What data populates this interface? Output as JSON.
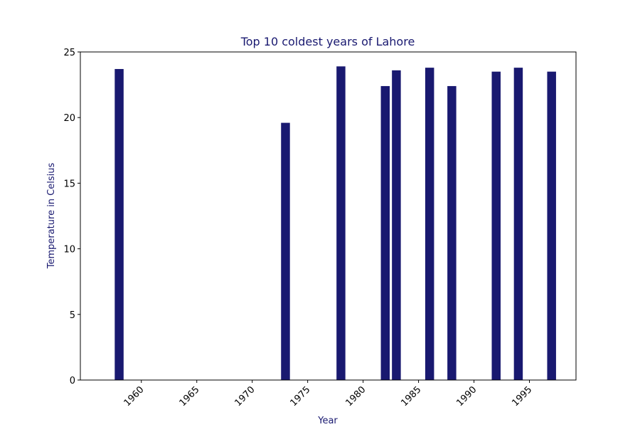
{
  "chart_data": {
    "type": "bar",
    "title": "Top 10 coldest years of Lahore",
    "xlabel": "Year",
    "ylabel": "Temperature in Celsius",
    "x": [
      1958,
      1973,
      1978,
      1982,
      1983,
      1986,
      1988,
      1992,
      1994,
      1997
    ],
    "values": [
      23.7,
      19.6,
      23.9,
      22.4,
      23.6,
      23.8,
      22.4,
      23.5,
      23.8,
      23.5
    ],
    "xlim": [
      1954.5,
      1999.2
    ],
    "ylim": [
      0,
      25
    ],
    "xticks": [
      1960,
      1965,
      1970,
      1975,
      1980,
      1985,
      1990,
      1995
    ],
    "yticks": [
      0,
      5,
      10,
      15,
      20,
      25
    ],
    "grid": false,
    "colors": {
      "bar": "#191970",
      "title": "#191970",
      "axis_label": "#191970"
    }
  }
}
